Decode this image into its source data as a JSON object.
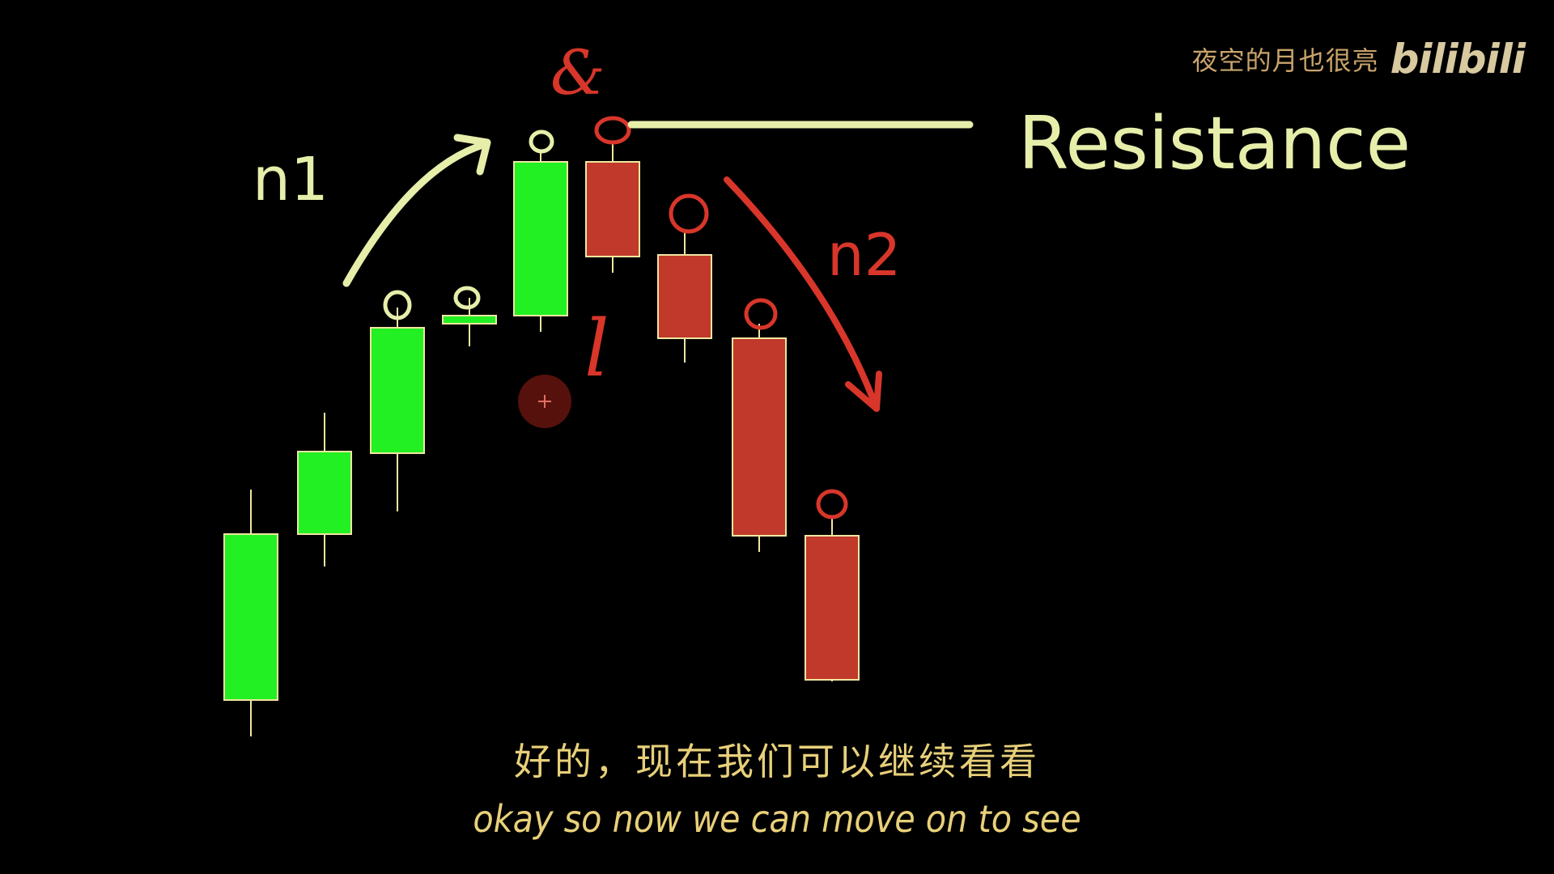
{
  "watermark": {
    "channel_name": "夜空的月也很亮",
    "logo_text": "bilibili"
  },
  "annotations": {
    "resistance_label": "Resistance",
    "move_1_label": "n1",
    "move_2_label": "n2",
    "high_marker": "&",
    "low_marker": "l"
  },
  "subtitles": {
    "chinese": "好的，现在我们可以继续看看",
    "english": "okay so now we can move on to see"
  },
  "colors": {
    "bullish": "#22f022",
    "bearish": "#c0392b",
    "outline": "#f0e6a0",
    "annotation_yellow": "#e6eeaa",
    "annotation_red": "#d8362a",
    "subtitle": "#e8d07a"
  },
  "candles": [
    {
      "direction": "up"
    },
    {
      "direction": "up"
    },
    {
      "direction": "up"
    },
    {
      "direction": "up"
    },
    {
      "direction": "up"
    },
    {
      "direction": "down"
    },
    {
      "direction": "down"
    },
    {
      "direction": "down"
    },
    {
      "direction": "down"
    }
  ]
}
